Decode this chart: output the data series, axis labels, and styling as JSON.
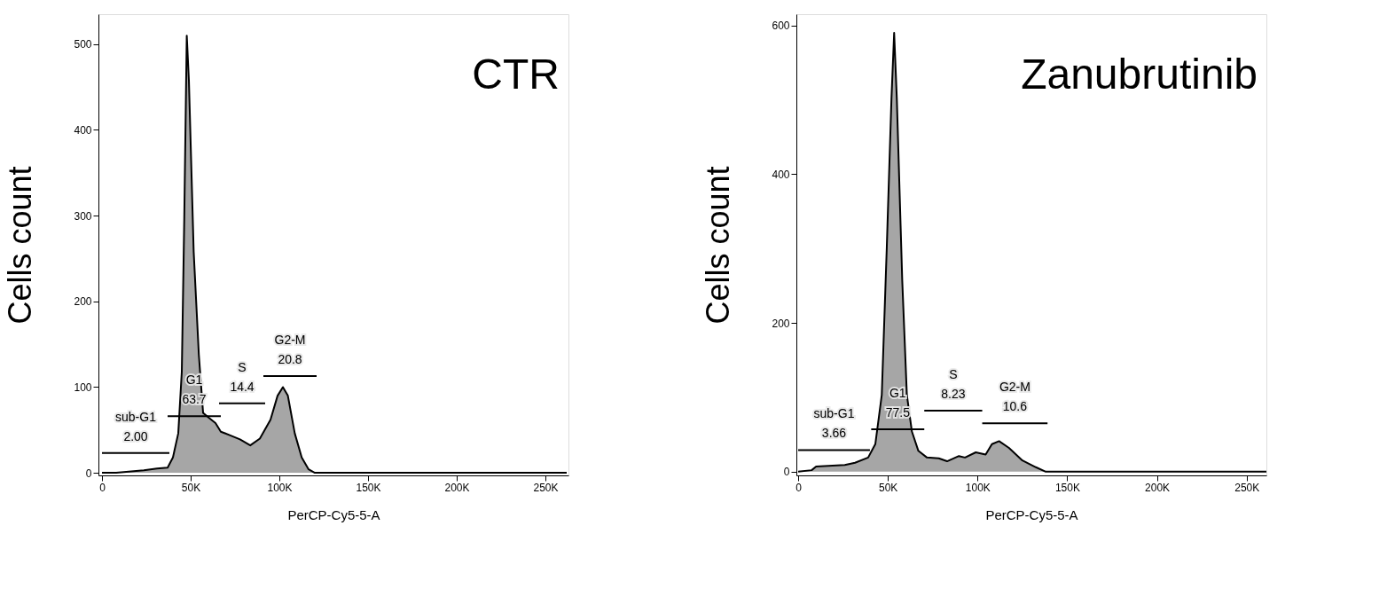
{
  "chart_data": [
    {
      "type": "area",
      "title": "CTR",
      "xlabel": "PerCP-Cy5-5-A",
      "ylabel": "Cells count",
      "xlim": [
        -2,
        263
      ],
      "ylim": [
        -3,
        535
      ],
      "xticks": [
        0,
        {
          "value": 50,
          "label": "50K"
        },
        {
          "value": 100,
          "label": "100K"
        },
        {
          "value": 150,
          "label": "150K"
        },
        {
          "value": 200,
          "label": "200K"
        },
        {
          "value": 250,
          "label": "250K"
        }
      ],
      "yticks": [
        0,
        100,
        200,
        300,
        400,
        500
      ],
      "series": [
        {
          "color": "#808080",
          "x": [
            0,
            8,
            23.6,
            31,
            37,
            40,
            43,
            45,
            46.4,
            47.8,
            49,
            51.7,
            54.6,
            57,
            60.4,
            64,
            67,
            72,
            77.8,
            83.6,
            89,
            95,
            99,
            102,
            104.8,
            108.7,
            112.6,
            116.5,
            120,
            262
          ],
          "values": [
            0,
            0,
            3,
            5,
            6,
            18,
            46,
            118,
            298,
            510,
            458,
            258,
            138,
            70,
            64,
            58,
            48,
            44,
            39,
            32,
            40,
            62,
            90,
            100,
            90,
            46,
            18,
            4,
            0,
            0
          ]
        },
        {
          "type": "line",
          "color": "#000000",
          "x": [
            0,
            38
          ],
          "values": [
            23,
            23
          ]
        },
        {
          "type": "line",
          "color": "#000000",
          "x": [
            37,
            67
          ],
          "values": [
            66,
            66
          ]
        },
        {
          "type": "line",
          "color": "#000000",
          "x": [
            66,
            92
          ],
          "values": [
            81,
            81
          ]
        },
        {
          "type": "line",
          "color": "#000000",
          "x": [
            91,
            121
          ],
          "values": [
            113,
            113
          ]
        }
      ],
      "annotations": [
        "sub-G1",
        "2.00",
        "G1",
        "63.7",
        "S",
        "14.4",
        "G2-M",
        "20.8"
      ]
    },
    {
      "type": "area",
      "title": "Zanubrutinib",
      "xlabel": "PerCP-Cy5-5-A",
      "ylabel": "Cells count",
      "xlim": [
        -1,
        261
      ],
      "ylim": [
        -5,
        615
      ],
      "xticks": [
        0,
        {
          "value": 50,
          "label": "50K"
        },
        {
          "value": 100,
          "label": "100K"
        },
        {
          "value": 150,
          "label": "150K"
        },
        {
          "value": 200,
          "label": "200K"
        },
        {
          "value": 250,
          "label": "250K"
        }
      ],
      "yticks": [
        0,
        200,
        400,
        600
      ],
      "series": [
        {
          "color": "#808080",
          "x": [
            0,
            7.5,
            10,
            26,
            31.7,
            39,
            43,
            46.6,
            49.4,
            52,
            53.5,
            55,
            58,
            60.6,
            63.4,
            67,
            71.8,
            78.4,
            83,
            89.6,
            93,
            99,
            104.5,
            108,
            112,
            117.5,
            125,
            132.5,
            138,
            261
          ],
          "values": [
            0,
            2,
            7,
            9,
            12,
            19,
            37,
            103,
            302,
            501,
            590,
            501,
            258,
            103,
            54,
            28,
            19,
            18,
            14,
            21,
            19,
            26,
            23,
            37,
            41,
            32,
            15,
            6,
            0,
            0
          ]
        },
        {
          "type": "line",
          "color": "#000000",
          "x": [
            0,
            40
          ],
          "values": [
            29,
            29
          ]
        },
        {
          "type": "line",
          "color": "#000000",
          "x": [
            40.7,
            70.3
          ],
          "values": [
            57,
            57
          ]
        },
        {
          "type": "line",
          "color": "#000000",
          "x": [
            70.3,
            102.6
          ],
          "values": [
            82,
            82
          ]
        },
        {
          "type": "line",
          "color": "#000000",
          "x": [
            102.6,
            139
          ],
          "values": [
            65,
            65
          ]
        }
      ],
      "annotations": [
        "sub-G1",
        "3.66",
        "G1",
        "77.5",
        "S",
        "8.23",
        "G2-M",
        "10.6"
      ]
    }
  ]
}
